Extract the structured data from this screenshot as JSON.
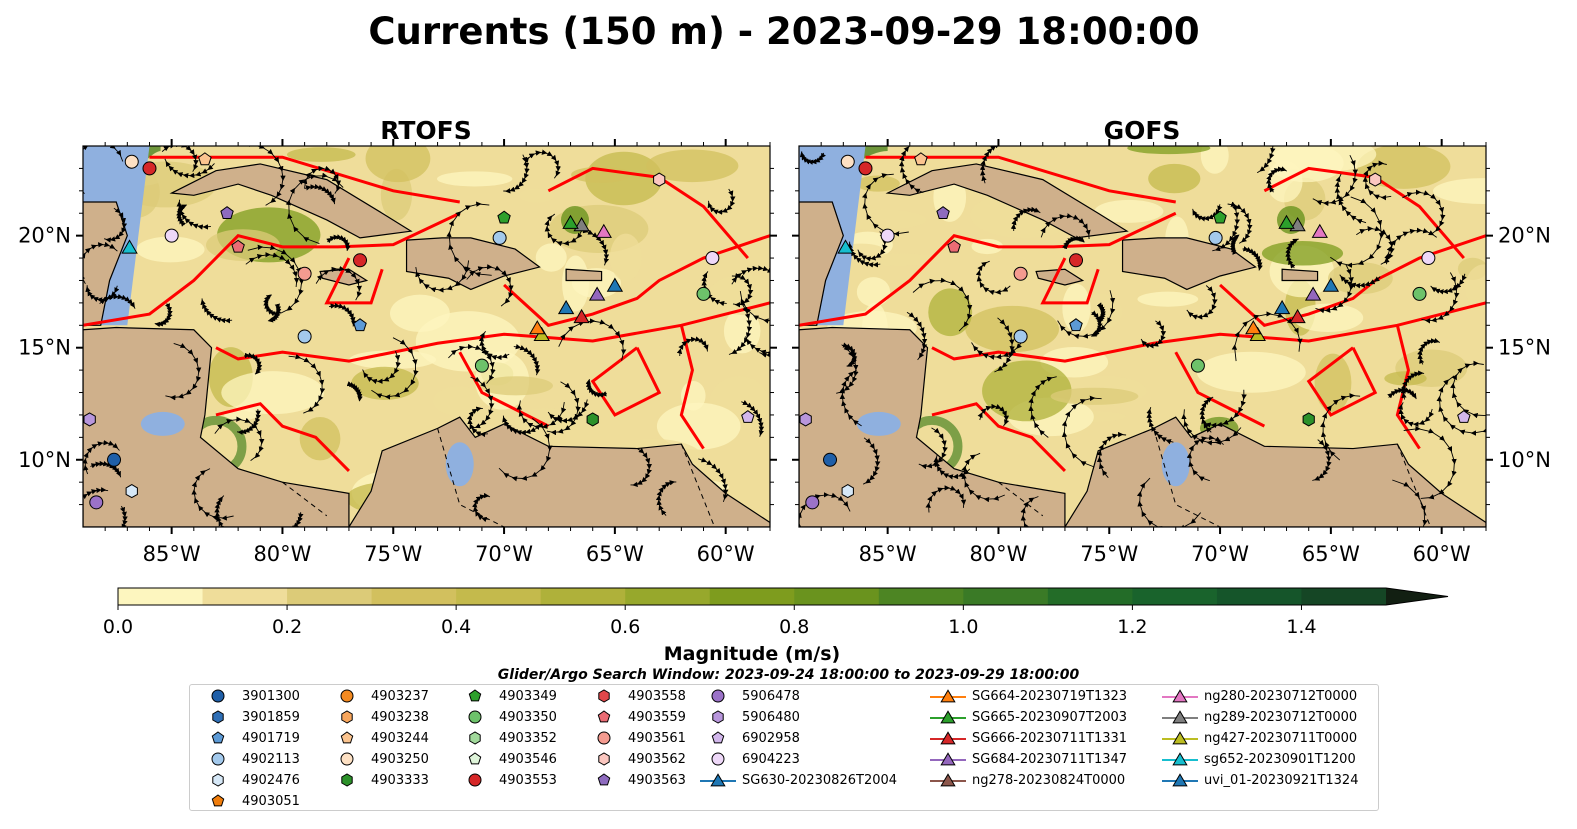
{
  "figure": {
    "suptitle": "Currents (150 m) - 2023-09-29 18:00:00",
    "colorbar_label": "Magnitude (m/s)",
    "search_window": "Glider/Argo Search Window: 2023-09-24 18:00:00 to 2023-09-29 18:00:00"
  },
  "chart_data": [
    {
      "type": "heatmap",
      "title": "RTOFS",
      "xlabel": "",
      "ylabel": "",
      "xlim": [
        -89,
        -58
      ],
      "ylim": [
        7,
        24
      ],
      "xticks": [
        "85°W",
        "80°W",
        "75°W",
        "70°W",
        "65°W",
        "60°W"
      ],
      "yticks": [
        "20°N",
        "15°N",
        "10°N"
      ],
      "overlays": [
        "streamlines",
        "EEZ boundaries",
        "bathymetry contours (1000 m)"
      ]
    },
    {
      "type": "heatmap",
      "title": "GOFS",
      "xlabel": "",
      "ylabel": "",
      "xlim": [
        -89,
        -58
      ],
      "ylim": [
        7,
        24
      ],
      "xticks": [
        "85°W",
        "80°W",
        "75°W",
        "70°W",
        "65°W",
        "60°W"
      ],
      "yticks": [
        "20°N",
        "15°N",
        "10°N"
      ],
      "overlays": [
        "streamlines",
        "EEZ boundaries",
        "bathymetry contours (1000 m)"
      ]
    }
  ],
  "colorbar": {
    "min": 0,
    "max": 1.5,
    "step": 0.1,
    "extend": "max",
    "ticks": [
      "0.0",
      "0.2",
      "0.4",
      "0.6",
      "0.8",
      "1.0",
      "1.2",
      "1.4"
    ],
    "colors": [
      "#fdf6bf",
      "#efdd9a",
      "#dccb78",
      "#d2c05e",
      "#c4ba4c",
      "#afb13a",
      "#97a82c",
      "#7e9c1e",
      "#6a931e",
      "#4d8523",
      "#3a7a26",
      "#236c28",
      "#19632c",
      "#15552a",
      "#154625",
      "#132d17",
      "#121f12"
    ]
  },
  "legend": [
    {
      "label": "3901300",
      "marker": "circle",
      "color": "#1f5fa8"
    },
    {
      "label": "3901859",
      "marker": "hexagon",
      "color": "#2f6fb6"
    },
    {
      "label": "4901719",
      "marker": "pentagon",
      "color": "#5c9ad6"
    },
    {
      "label": "4902113",
      "marker": "circle",
      "color": "#a3c9ec"
    },
    {
      "label": "4902476",
      "marker": "hexagon",
      "color": "#d6e8f7"
    },
    {
      "label": "4903051",
      "marker": "pentagon",
      "color": "#f07d0c"
    },
    {
      "label": "4903237",
      "marker": "circle",
      "color": "#f38a21"
    },
    {
      "label": "4903238",
      "marker": "hexagon",
      "color": "#f8a65c"
    },
    {
      "label": "4903244",
      "marker": "pentagon",
      "color": "#fbc48f"
    },
    {
      "label": "4903250",
      "marker": "circle",
      "color": "#fde0c3"
    },
    {
      "label": "4903333",
      "marker": "hexagon",
      "color": "#2c912a"
    },
    {
      "label": "4903349",
      "marker": "pentagon",
      "color": "#2ea02c"
    },
    {
      "label": "4903350",
      "marker": "circle",
      "color": "#6dc26a"
    },
    {
      "label": "4903352",
      "marker": "hexagon",
      "color": "#a1d99b"
    },
    {
      "label": "4903546",
      "marker": "pentagon",
      "color": "#dff5da"
    },
    {
      "label": "4903553",
      "marker": "circle",
      "color": "#d62728"
    },
    {
      "label": "4903558",
      "marker": "hexagon",
      "color": "#e0474a"
    },
    {
      "label": "4903559",
      "marker": "pentagon",
      "color": "#ea6c74"
    },
    {
      "label": "4903561",
      "marker": "circle",
      "color": "#f49b90"
    },
    {
      "label": "4903562",
      "marker": "hexagon",
      "color": "#fbc7c0"
    },
    {
      "label": "4903563",
      "marker": "pentagon",
      "color": "#8e6bbf"
    },
    {
      "label": "5906478",
      "marker": "circle",
      "color": "#9b72c8"
    },
    {
      "label": "5906480",
      "marker": "hexagon",
      "color": "#b896dc"
    },
    {
      "label": "6902958",
      "marker": "pentagon",
      "color": "#d2b7ec"
    },
    {
      "label": "6904223",
      "marker": "circle",
      "color": "#eed8f8"
    },
    {
      "label": "SG630-20230826T2004",
      "marker": "triangle",
      "color": "#1f77b4"
    },
    {
      "label": "SG664-20230719T1323",
      "marker": "triangle",
      "color": "#ff7f0e"
    },
    {
      "label": "SG665-20230907T2003",
      "marker": "triangle",
      "color": "#2ca02c"
    },
    {
      "label": "SG666-20230711T1331",
      "marker": "triangle",
      "color": "#d62728"
    },
    {
      "label": "SG684-20230711T1347",
      "marker": "triangle",
      "color": "#9467bd"
    },
    {
      "label": "ng278-20230824T0000",
      "marker": "triangle",
      "color": "#8c564b"
    },
    {
      "label": "ng280-20230712T0000",
      "marker": "triangle",
      "color": "#e377c2"
    },
    {
      "label": "ng289-20230712T0000",
      "marker": "triangle",
      "color": "#7f7f7f"
    },
    {
      "label": "ng427-20230711T0000",
      "marker": "triangle",
      "color": "#bcbd22"
    },
    {
      "label": "sg652-20230901T1200",
      "marker": "triangle",
      "color": "#17becf"
    },
    {
      "label": "uvi_01-20230921T1324",
      "marker": "triangle",
      "color": "#1f77b4"
    }
  ],
  "colors": {
    "water": "#8fb0df",
    "land": "#cfb08b",
    "eez": "#ff0000",
    "current_low": "#fdf6bf"
  }
}
